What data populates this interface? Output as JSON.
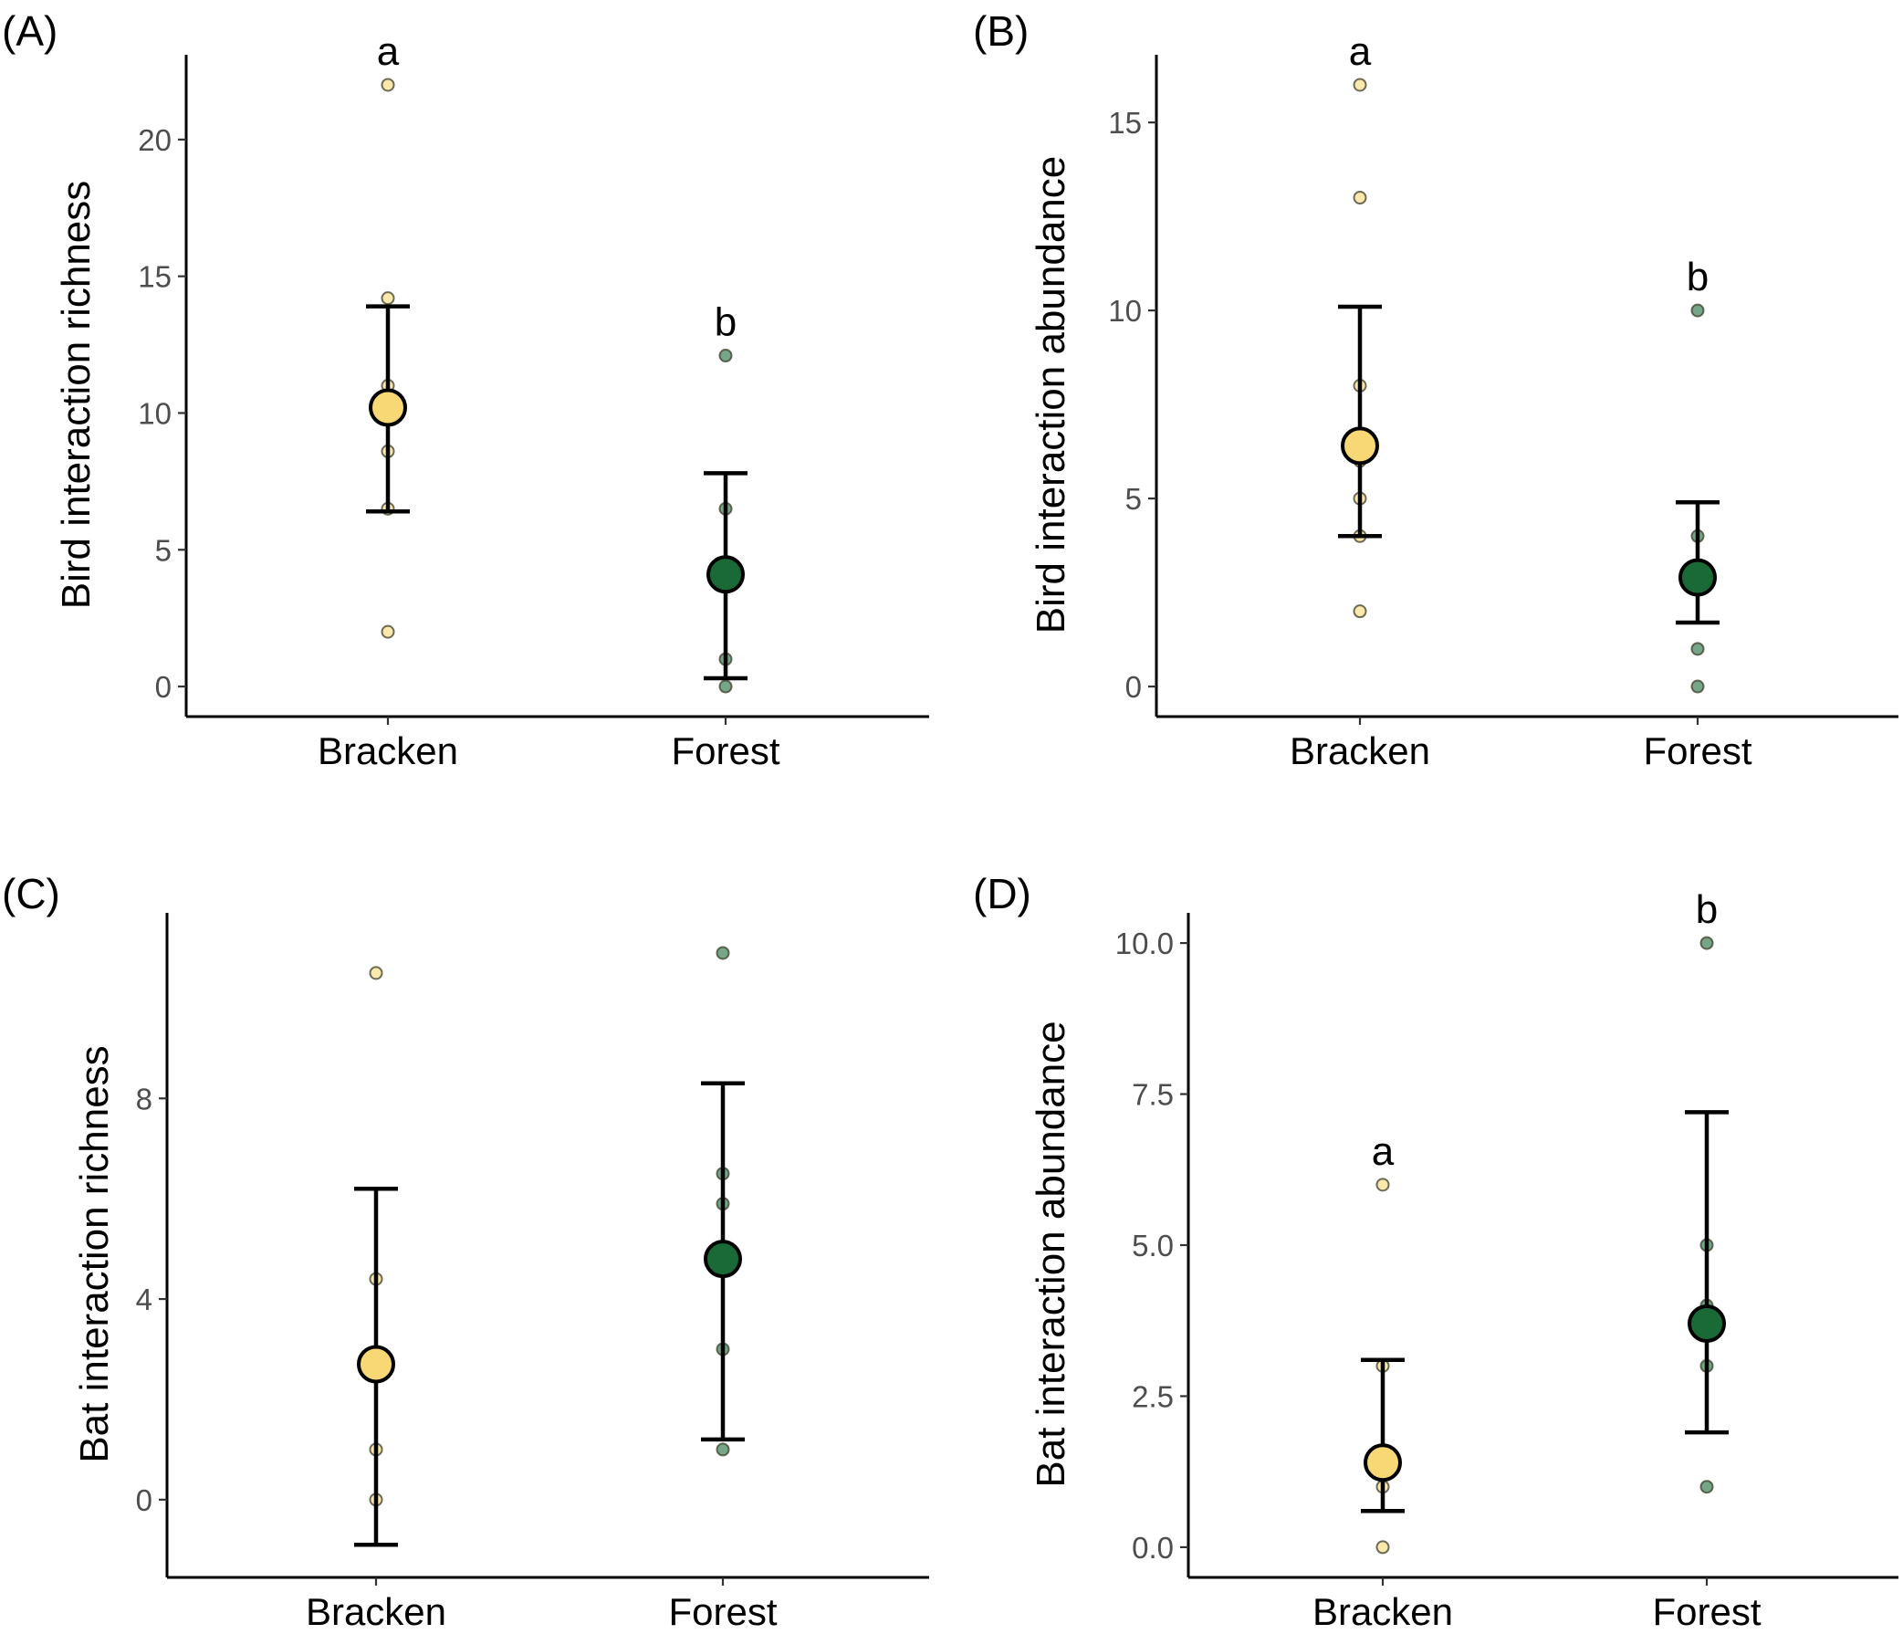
{
  "colors": {
    "bracken": "#f8d874",
    "forest": "#1a6a38",
    "axis": "#000000",
    "tick_label": "#4d4d4d"
  },
  "chart_data": [
    {
      "panel": "(A)",
      "type": "scatter",
      "ylabel": "Bird interaction richness",
      "categories": [
        "Bracken",
        "Forest"
      ],
      "ylim": [
        -1.1,
        23.1
      ],
      "yticks": [
        0,
        5,
        10,
        15,
        20
      ],
      "ytick_labels": [
        "0",
        "5",
        "10",
        "15",
        "20"
      ],
      "series": [
        {
          "name": "Bracken",
          "color": "#f8d874",
          "mean": 10.2,
          "ci": [
            6.4,
            13.9
          ],
          "letter": "a",
          "points": [
            22,
            14.2,
            11,
            10.5,
            8.6,
            6.5,
            2
          ]
        },
        {
          "name": "Forest",
          "color": "#1a6a38",
          "mean": 4.1,
          "ci": [
            0.3,
            7.8
          ],
          "letter": "b",
          "points": [
            12.1,
            6.5,
            4.4,
            1,
            0
          ]
        }
      ]
    },
    {
      "panel": "(B)",
      "type": "scatter",
      "ylabel": "Bird interaction abundance",
      "categories": [
        "Bracken",
        "Forest"
      ],
      "ylim": [
        -0.8,
        16.8
      ],
      "yticks": [
        0,
        5,
        10,
        15
      ],
      "ytick_labels": [
        "0",
        "5",
        "10",
        "15"
      ],
      "series": [
        {
          "name": "Bracken",
          "color": "#f8d874",
          "mean": 6.4,
          "ci": [
            4.0,
            10.1
          ],
          "letter": "a",
          "points": [
            16,
            13,
            8,
            6,
            5,
            4,
            2
          ]
        },
        {
          "name": "Forest",
          "color": "#1a6a38",
          "mean": 2.9,
          "ci": [
            1.7,
            4.9
          ],
          "letter": "b",
          "points": [
            10,
            4,
            3,
            1,
            0
          ]
        }
      ]
    },
    {
      "panel": "(C)",
      "type": "scatter",
      "ylabel": "Bat interaction richness",
      "categories": [
        "Bracken",
        "Forest"
      ],
      "ylim": [
        -1.55,
        11.7
      ],
      "yticks": [
        0,
        4,
        8
      ],
      "ytick_labels": [
        "0",
        "4",
        "8"
      ],
      "series": [
        {
          "name": "Bracken",
          "color": "#f8d874",
          "mean": 2.7,
          "ci": [
            -0.9,
            6.2
          ],
          "letter": "",
          "points": [
            10.5,
            4.4,
            1,
            0
          ]
        },
        {
          "name": "Forest",
          "color": "#1a6a38",
          "mean": 4.8,
          "ci": [
            1.2,
            8.3
          ],
          "letter": "",
          "points": [
            10.9,
            6.5,
            5.9,
            3,
            1
          ]
        }
      ]
    },
    {
      "panel": "(D)",
      "type": "scatter",
      "ylabel": "Bat interaction abundance",
      "categories": [
        "Bracken",
        "Forest"
      ],
      "ylim": [
        -0.5,
        10.5
      ],
      "yticks": [
        0,
        2.5,
        5,
        7.5,
        10
      ],
      "ytick_labels": [
        "0.0",
        "2.5",
        "5.0",
        "7.5",
        "10.0"
      ],
      "series": [
        {
          "name": "Bracken",
          "color": "#f8d874",
          "mean": 1.4,
          "ci": [
            0.6,
            3.1
          ],
          "letter": "a",
          "points": [
            6,
            3,
            1,
            0
          ]
        },
        {
          "name": "Forest",
          "color": "#1a6a38",
          "mean": 3.7,
          "ci": [
            1.9,
            7.2
          ],
          "letter": "b",
          "points": [
            10,
            5,
            4,
            3,
            1
          ]
        }
      ]
    }
  ]
}
